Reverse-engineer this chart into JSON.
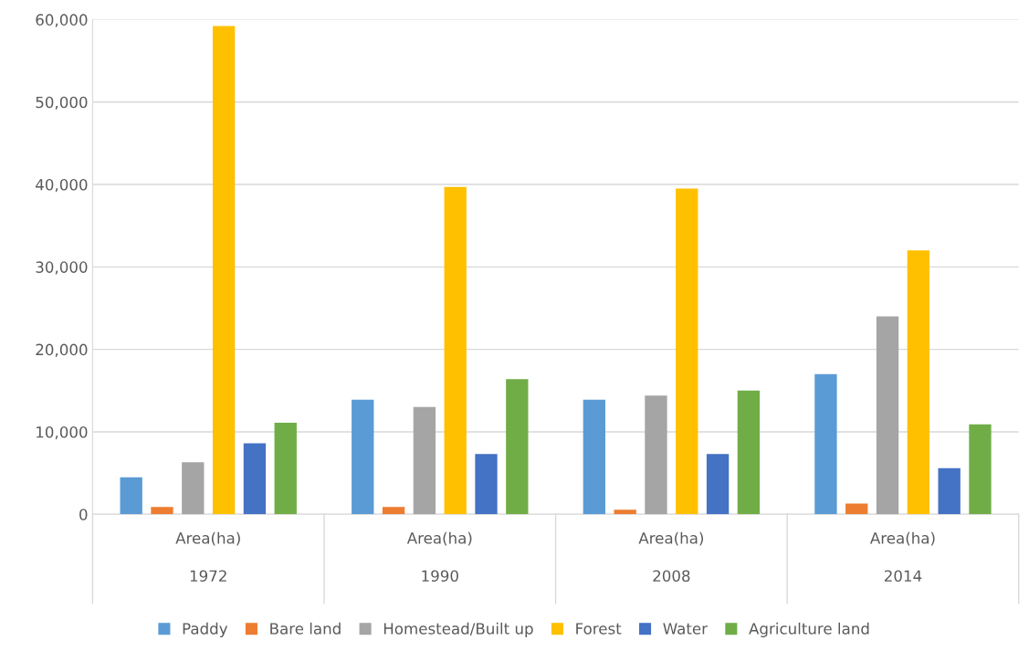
{
  "chart_data": {
    "type": "bar",
    "categories": [
      "Area(ha)\n1972",
      "Area(ha)\n1990",
      "Area(ha)\n2008",
      "Area(ha)\n2014"
    ],
    "series": [
      {
        "name": "Paddy",
        "color": "#5b9bd5",
        "values": [
          4500,
          13900,
          13900,
          17000
        ]
      },
      {
        "name": "Bare land",
        "color": "#ed7d31",
        "values": [
          900,
          900,
          550,
          1300
        ]
      },
      {
        "name": "Homestead/Built up",
        "color": "#a5a5a5",
        "values": [
          6300,
          13000,
          14400,
          24000
        ]
      },
      {
        "name": "Forest",
        "color": "#ffc000",
        "values": [
          59200,
          39700,
          39500,
          32000
        ]
      },
      {
        "name": "Water",
        "color": "#4472c4",
        "values": [
          8600,
          7300,
          7300,
          5600
        ]
      },
      {
        "name": "Agriculture land",
        "color": "#70ad47",
        "values": [
          11100,
          16400,
          15000,
          10900
        ]
      }
    ],
    "ylim": [
      0,
      60000
    ],
    "yticks": [
      {
        "value": 0,
        "label": "0"
      },
      {
        "value": 10000,
        "label": "10,000"
      },
      {
        "value": 20000,
        "label": "20,000"
      },
      {
        "value": 30000,
        "label": "30,000"
      },
      {
        "value": 40000,
        "label": "40,000"
      },
      {
        "value": 50000,
        "label": "50,000"
      },
      {
        "value": 60000,
        "label": "60,000"
      }
    ],
    "grid": "y",
    "legend": "bottom"
  }
}
